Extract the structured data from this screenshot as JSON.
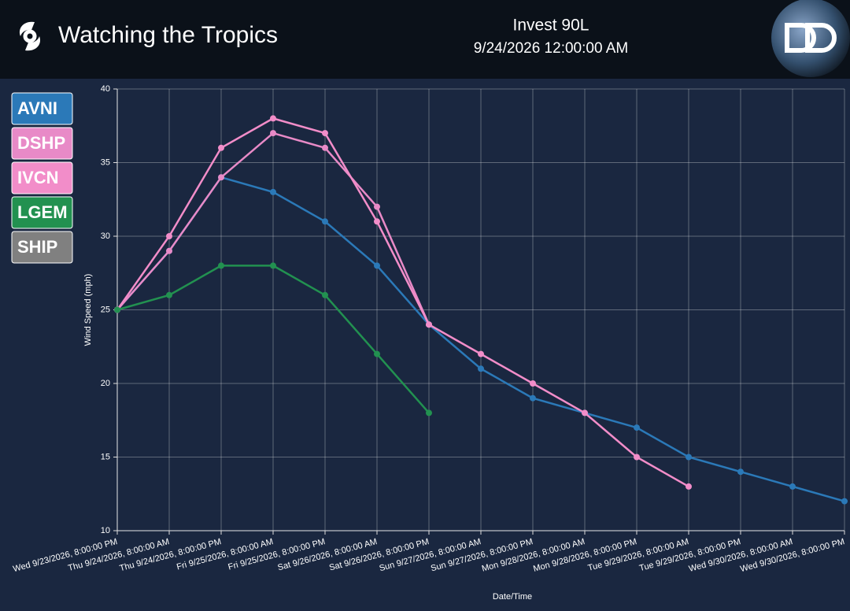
{
  "header": {
    "title": "Watching the Tropics",
    "storm": "Invest 90L",
    "time": "9/24/2026 12:00:00 AM"
  },
  "chart_data": {
    "type": "line",
    "x_label": "Date/Time",
    "y_label": "Wind Speed (mph)",
    "categories": [
      "Wed 9/23/2026, 8:00:00 PM",
      "Thu 9/24/2026, 8:00:00 AM",
      "Thu 9/24/2026, 8:00:00 PM",
      "Fri 9/25/2026, 8:00:00 AM",
      "Fri 9/25/2026, 8:00:00 PM",
      "Sat 9/26/2026, 8:00:00 AM",
      "Sat 9/26/2026, 8:00:00 PM",
      "Sun 9/27/2026, 8:00:00 AM",
      "Sun 9/27/2026, 8:00:00 PM",
      "Mon 9/28/2026, 8:00:00 AM",
      "Mon 9/28/2026, 8:00:00 PM",
      "Tue 9/29/2026, 8:00:00 AM",
      "Tue 9/29/2026, 8:00:00 PM",
      "Wed 9/30/2026, 8:00:00 AM",
      "Wed 9/30/2026, 8:00:00 PM"
    ],
    "series": [
      {
        "name": "AVNI",
        "color": "#2b79b8",
        "values": [
          25,
          29,
          34,
          33,
          31,
          28,
          24,
          21,
          19,
          18,
          17,
          15,
          14,
          13,
          12
        ]
      },
      {
        "name": "DSHP",
        "color": "#e88ac7",
        "values": [
          25,
          29,
          34,
          37,
          36,
          32,
          24,
          null,
          null,
          null,
          null,
          null,
          null,
          null,
          null
        ]
      },
      {
        "name": "IVCN",
        "color": "#f28dc9",
        "values": [
          25,
          30,
          36,
          38,
          37,
          31,
          24,
          22,
          20,
          18,
          15,
          13,
          null,
          null,
          null
        ]
      },
      {
        "name": "LGEM",
        "color": "#229150",
        "values": [
          25,
          26,
          28,
          28,
          26,
          22,
          18,
          null,
          null,
          null,
          null,
          null,
          null,
          null,
          null
        ]
      },
      {
        "name": "SHIP",
        "color": "#808080",
        "values": [
          null,
          null,
          null,
          null,
          null,
          null,
          null,
          null,
          null,
          null,
          null,
          null,
          null,
          null,
          null
        ]
      }
    ],
    "ylim": [
      10,
      40
    ],
    "yticks": [
      10,
      15,
      20,
      25,
      30,
      35,
      40
    ],
    "grid": true
  }
}
